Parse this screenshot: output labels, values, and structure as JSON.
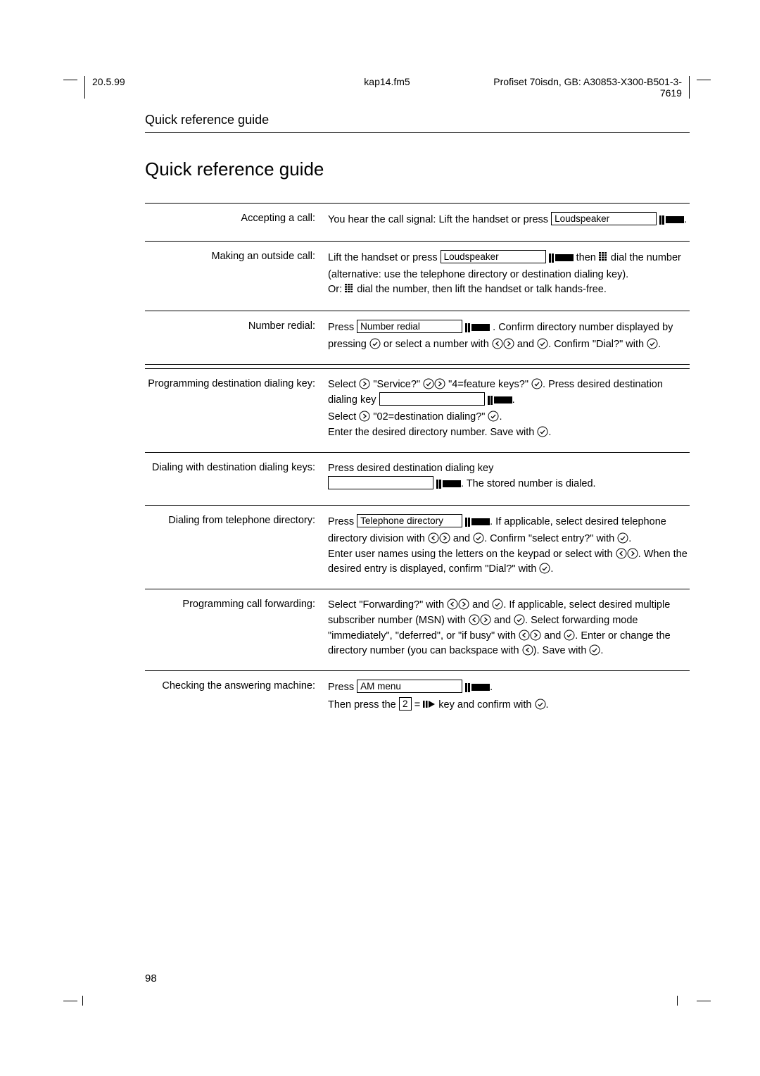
{
  "meta": {
    "date": "20.5.99",
    "file": "kap14.fm5",
    "doc_id": "Profiset 70isdn, GB: A30853-X300-B501-3-7619"
  },
  "running_title": "Quick reference guide",
  "main_title": "Quick reference guide",
  "page_number": "98",
  "keys": {
    "loudspeaker": "Loudspeaker",
    "number_redial": "Number redial",
    "tel_directory": "Telephone directory",
    "am_menu": "AM menu",
    "digit2": "2"
  },
  "rows": [
    {
      "label": "Accepting a call:",
      "body_before": "You hear the call signal: Lift the handset or press ",
      "key1": "loudspeaker",
      "body_after": "."
    },
    {
      "label": "Making an outside call:",
      "segments": [
        {
          "t": "Lift the handset or press "
        },
        {
          "key": "loudspeaker"
        },
        {
          "led": true
        },
        {
          "t": " then "
        },
        {
          "keypad": true
        },
        {
          "t": " dial the number (alternative: use the telephone directory or destination dialing key)."
        },
        {
          "br": true
        },
        {
          "t": "Or: "
        },
        {
          "keypad": true
        },
        {
          "t": " dial the number, then lift the handset or talk hands-free."
        }
      ]
    },
    {
      "label": "Number redial:",
      "segments": [
        {
          "t": "Press "
        },
        {
          "key": "number_redial"
        },
        {
          "led": true
        },
        {
          "t": " . Confirm directory number displayed by pressing "
        },
        {
          "circ": "v"
        },
        {
          "t": " or select a number with "
        },
        {
          "circ": "l"
        },
        {
          "circ": "r"
        },
        {
          "t": " and "
        },
        {
          "circ": "v"
        },
        {
          "t": ". Confirm \"Dial?\" with "
        },
        {
          "circ": "v"
        },
        {
          "t": "."
        }
      ]
    },
    {
      "gap": true
    },
    {
      "label": "Programming destination dialing key:",
      "segments": [
        {
          "t": "Select "
        },
        {
          "circ": "r"
        },
        {
          "t": " \"Service?\" "
        },
        {
          "circ": "v"
        },
        {
          "circ": "r"
        },
        {
          "t": " \"4=feature keys?\" "
        },
        {
          "circ": "v"
        },
        {
          "t": ". Press desired destination dialing key "
        },
        {
          "key": "empty"
        },
        {
          "led": true
        },
        {
          "t": "."
        },
        {
          "br": true
        },
        {
          "t": "Select "
        },
        {
          "circ": "r"
        },
        {
          "t": " \"02=destination dialing?\" "
        },
        {
          "circ": "v"
        },
        {
          "t": "."
        },
        {
          "br": true
        },
        {
          "t": "Enter the desired directory number. Save with "
        },
        {
          "circ": "v"
        },
        {
          "t": "."
        }
      ]
    },
    {
      "label": "Dialing with destination dialing keys:",
      "segments": [
        {
          "t": "Press desired destination dialing key "
        },
        {
          "br": true
        },
        {
          "key": "empty"
        },
        {
          "led": true
        },
        {
          "t": ". The stored number is dialed."
        }
      ]
    },
    {
      "label": "Dialing from telephone directory:",
      "segments": [
        {
          "t": "Press "
        },
        {
          "key": "tel_directory"
        },
        {
          "led": true
        },
        {
          "t": ". If applicable, select desired telephone directory division with "
        },
        {
          "circ": "l"
        },
        {
          "circ": "r"
        },
        {
          "t": " and "
        },
        {
          "circ": "v"
        },
        {
          "t": ". Confirm \"select entry?\" with "
        },
        {
          "circ": "v"
        },
        {
          "t": "."
        },
        {
          "br": true
        },
        {
          "t": "Enter user names using the letters on the keypad or select with "
        },
        {
          "circ": "l"
        },
        {
          "circ": "r"
        },
        {
          "t": ". When the desired entry is displayed, confirm \"Dial?\" with "
        },
        {
          "circ": "v"
        },
        {
          "t": "."
        }
      ]
    },
    {
      "label": "Programming call forwarding:",
      "segments": [
        {
          "t": "Select \"Forwarding?\" with "
        },
        {
          "circ": "l"
        },
        {
          "circ": "r"
        },
        {
          "t": " and "
        },
        {
          "circ": "v"
        },
        {
          "t": ". If applicable, select desired multiple subscriber number (MSN) with "
        },
        {
          "circ": "l"
        },
        {
          "circ": "r"
        },
        {
          "t": " and "
        },
        {
          "circ": "v"
        },
        {
          "t": ". Select forwarding mode \"immediately\", \"deferred\", or \"if busy\" with "
        },
        {
          "circ": "l"
        },
        {
          "circ": "r"
        },
        {
          "t": " and "
        },
        {
          "circ": "v"
        },
        {
          "t": ". Enter or change the directory number (you can backspace with "
        },
        {
          "circ": "l"
        },
        {
          "t": "). Save with "
        },
        {
          "circ": "v"
        },
        {
          "t": "."
        }
      ]
    },
    {
      "label": "Checking the answering machine:",
      "segments": [
        {
          "t": "Press "
        },
        {
          "key": "am_menu"
        },
        {
          "led": true
        },
        {
          "t": "."
        },
        {
          "br": true
        },
        {
          "t": "Then press the "
        },
        {
          "key": "digit2",
          "small": true
        },
        {
          "t": " = "
        },
        {
          "playpause": true
        },
        {
          "t": " key and confirm with "
        },
        {
          "circ": "v"
        },
        {
          "t": "."
        }
      ]
    }
  ]
}
